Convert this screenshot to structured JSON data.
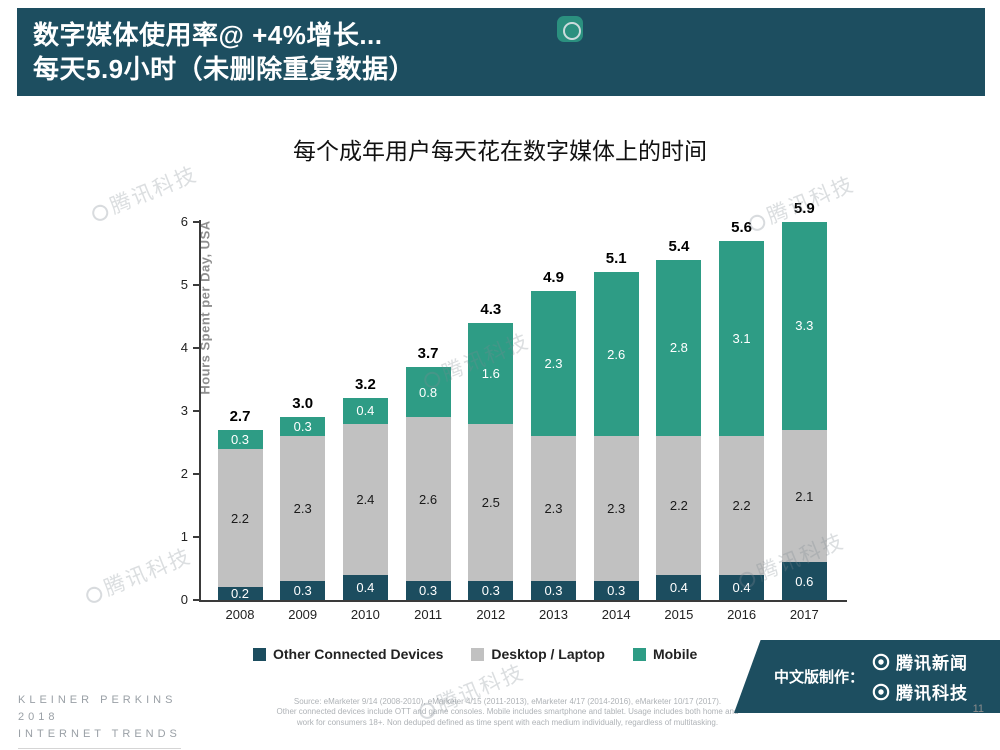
{
  "header": {
    "line1": "数字媒体使用率@ +4%增长...",
    "line2": "每天5.9小时（未删除重复数据）"
  },
  "chart_data": {
    "type": "bar",
    "stacked": true,
    "title": "每个成年用户每天花在数字媒体上的时间",
    "ylabel": "Hours Spent per Day, USA",
    "ylim": [
      0,
      6
    ],
    "yticks": [
      0,
      1,
      2,
      3,
      4,
      5,
      6
    ],
    "grid": false,
    "legend_position": "bottom",
    "categories": [
      "2008",
      "2009",
      "2010",
      "2011",
      "2012",
      "2013",
      "2014",
      "2015",
      "2016",
      "2017"
    ],
    "series": [
      {
        "name": "Other Connected Devices",
        "color": "#1c4d5f",
        "label_color": "#ffffff",
        "values": [
          0.2,
          0.3,
          0.4,
          0.3,
          0.3,
          0.3,
          0.3,
          0.4,
          0.4,
          0.6
        ]
      },
      {
        "name": "Desktop / Laptop",
        "color": "#c1c1c1",
        "label_color": "#1a1a1a",
        "values": [
          2.2,
          2.3,
          2.4,
          2.6,
          2.5,
          2.3,
          2.3,
          2.2,
          2.2,
          2.1
        ]
      },
      {
        "name": "Mobile",
        "color": "#2e9c85",
        "label_color": "#ffffff",
        "values": [
          0.3,
          0.3,
          0.4,
          0.8,
          1.6,
          2.3,
          2.6,
          2.8,
          3.1,
          3.3
        ]
      }
    ],
    "totals": [
      "2.7",
      "3.0",
      "3.2",
      "3.7",
      "4.3",
      "4.9",
      "5.1",
      "5.4",
      "5.6",
      "5.9"
    ]
  },
  "banner": {
    "prefix": "中文版制作：",
    "logos": [
      "腾讯新闻",
      "腾讯科技"
    ]
  },
  "watermark": {
    "text": "腾讯科技"
  },
  "footer": {
    "brand_lines": [
      "KLEINER PERKINS",
      "2018",
      "INTERNET TRENDS"
    ],
    "source_lines": [
      "Source: eMarketer 9/14 (2008-2010), eMarketer 4/15 (2011-2013), eMarketer 4/17 (2014-2016), eMarketer 10/17 (2017).",
      "Other connected devices include OTT and game consoles. Mobile includes smartphone and tablet. Usage includes both home and",
      "work for consumers 18+. Non deduped defined as time spent with each medium individually, regardless of multitasking."
    ],
    "page_number": "11"
  }
}
